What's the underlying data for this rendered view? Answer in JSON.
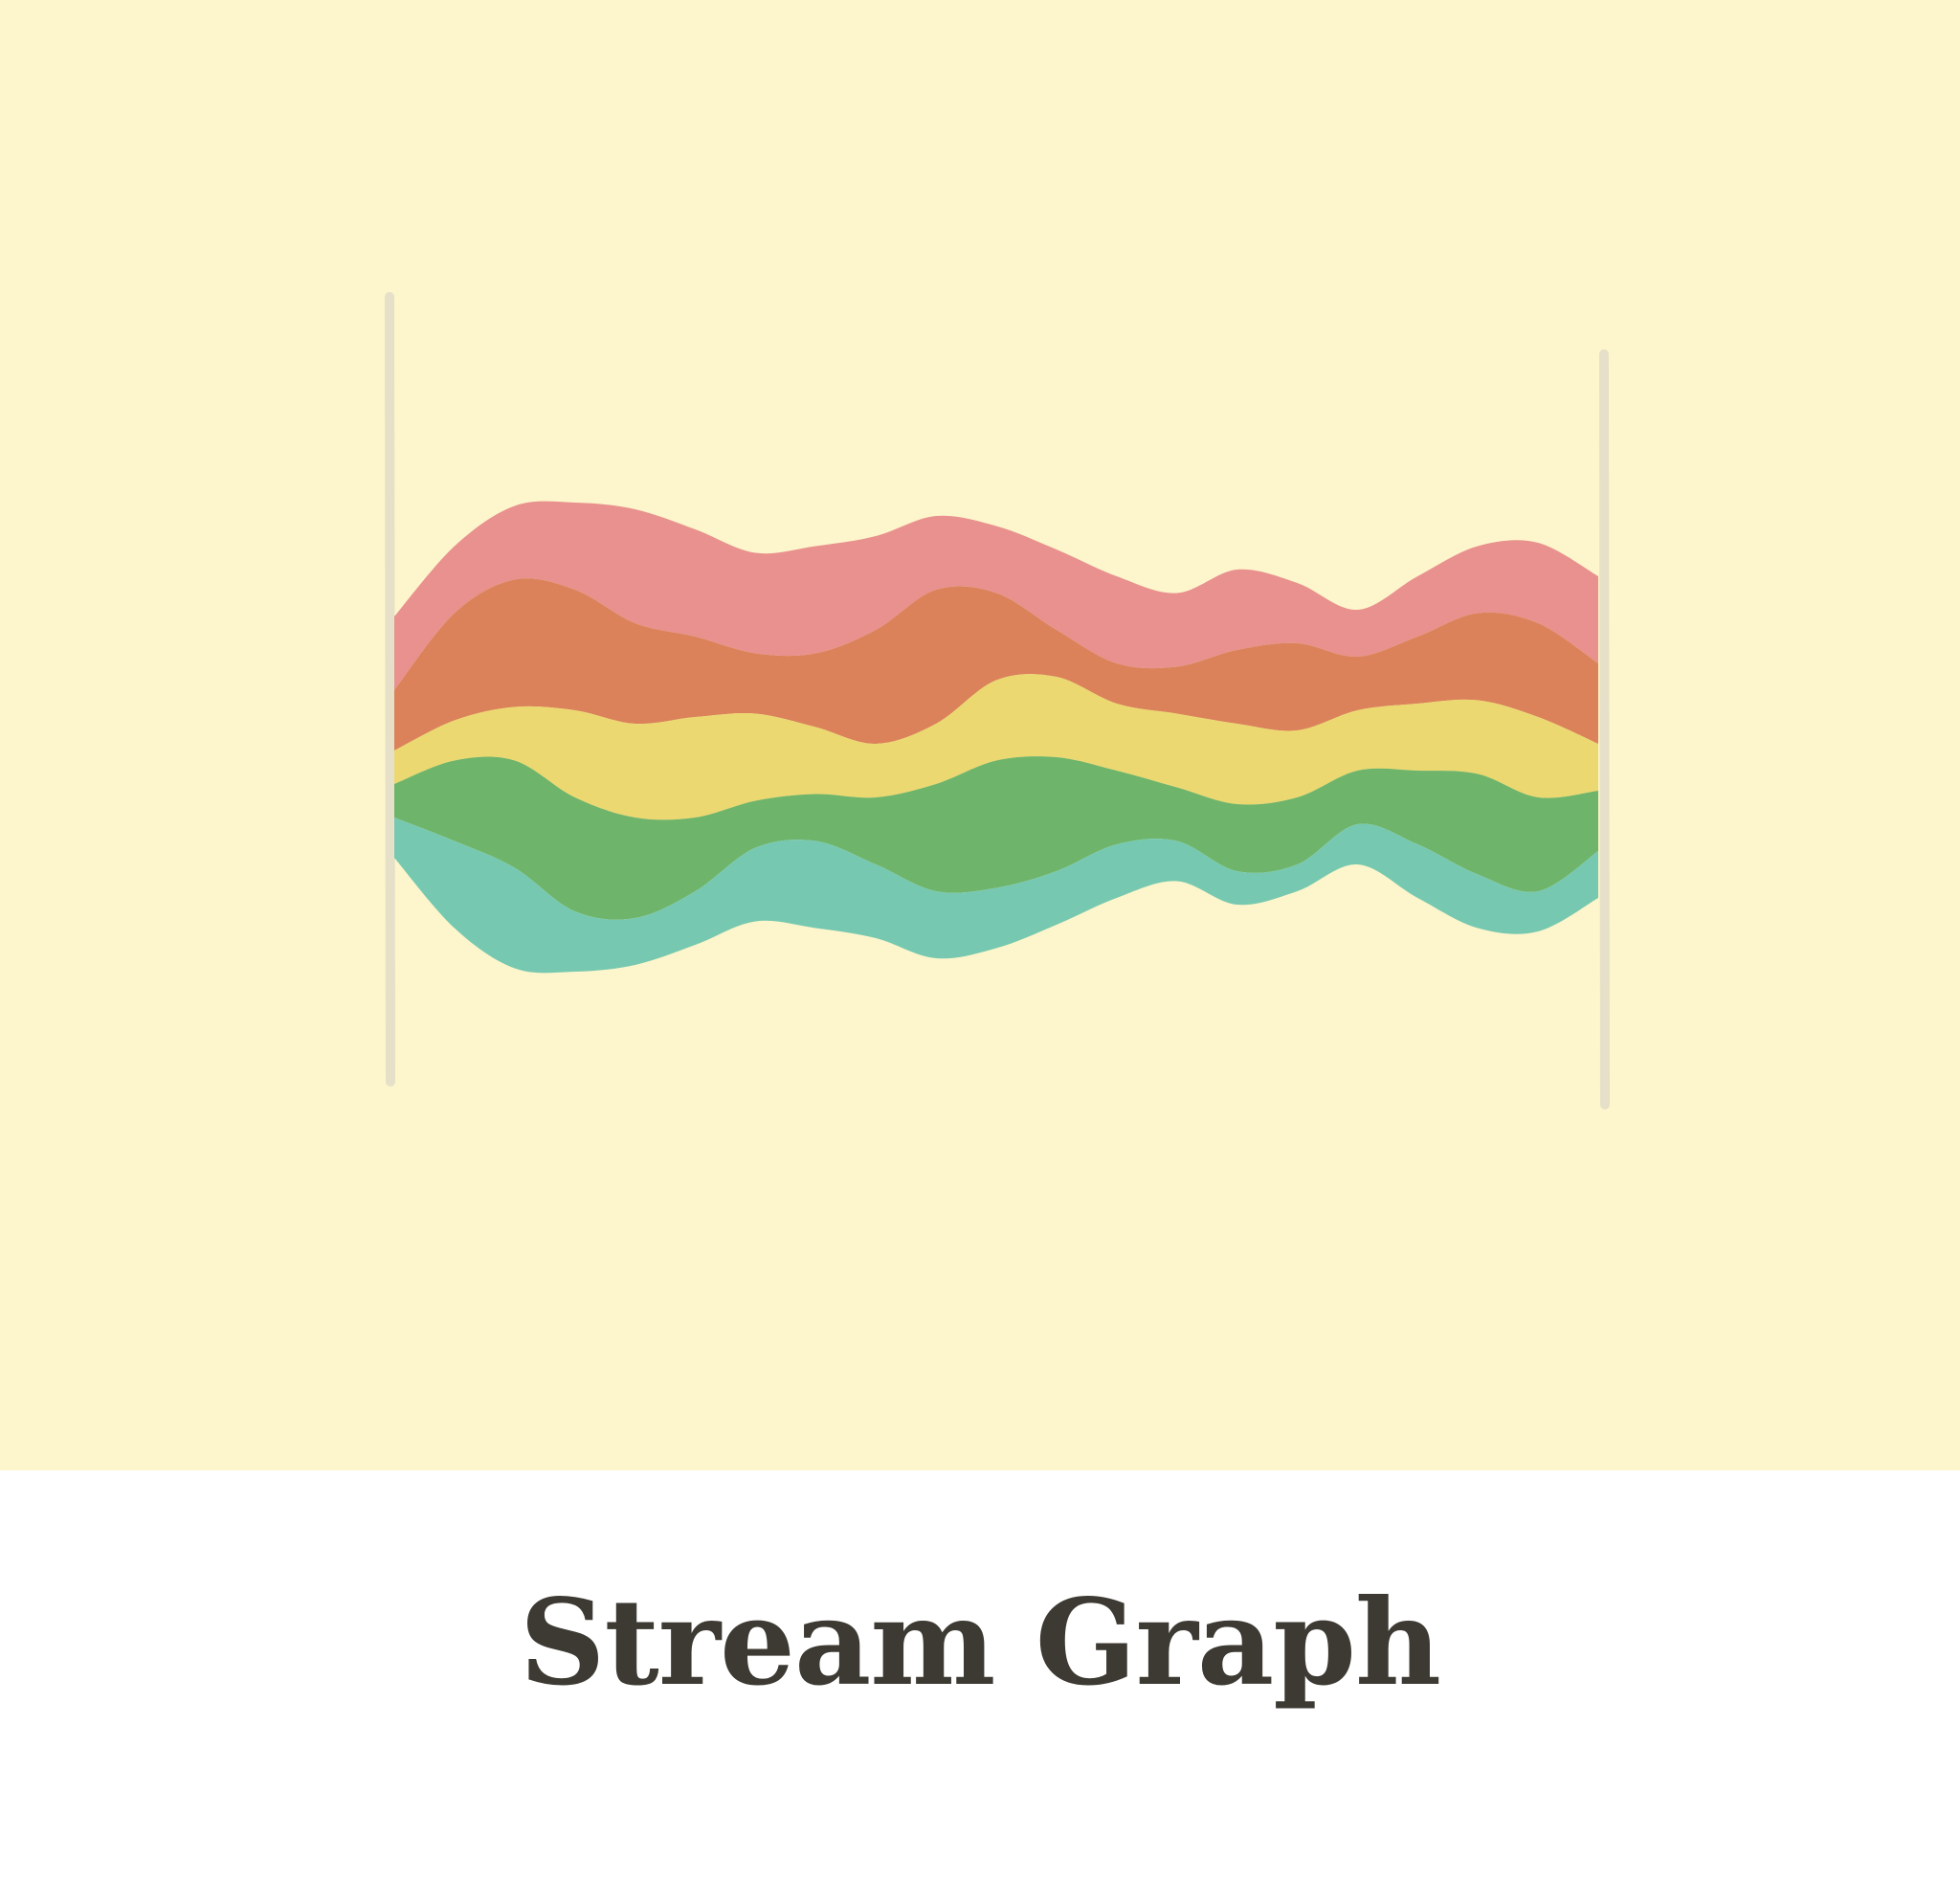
{
  "title": "Stream Graph",
  "colors": {
    "background": "#fdf5cb",
    "caption_background": "#ffffff",
    "caption_text": "#3d3a33",
    "axis": "#e6e0c8"
  },
  "chart_data": {
    "type": "area",
    "layout": "streamgraph",
    "baseline": "wiggle",
    "x": [
      0,
      1,
      2,
      3,
      4,
      5,
      6,
      7,
      8,
      9,
      10,
      11,
      12,
      13,
      14,
      15,
      16,
      17,
      18,
      19,
      20
    ],
    "ylim": [
      -1,
      1
    ],
    "series": [
      {
        "color": "#76c9b0",
        "values": [
          6,
          13,
          15,
          9,
          7,
          8,
          11,
          13,
          11,
          10,
          9,
          8,
          8,
          6,
          5,
          4,
          6,
          8,
          8,
          6,
          7
        ]
      },
      {
        "color": "#6fb46b",
        "values": [
          5,
          12,
          16,
          17,
          15,
          11,
          7,
          7,
          10,
          16,
          19,
          17,
          11,
          8,
          10,
          10,
          8,
          11,
          15,
          14,
          9
        ]
      },
      {
        "color": "#ecd870",
        "values": [
          5,
          6,
          8,
          13,
          14,
          15,
          13,
          10,
          8,
          9,
          12,
          12,
          10,
          11,
          12,
          10,
          9,
          10,
          11,
          12,
          7
        ]
      },
      {
        "color": "#db825b",
        "values": [
          9,
          16,
          19,
          18,
          15,
          12,
          9,
          11,
          17,
          20,
          13,
          7,
          6,
          7,
          11,
          13,
          8,
          10,
          13,
          14,
          12
        ]
      },
      {
        "color": "#e8918e",
        "values": [
          11,
          10,
          11,
          13,
          17,
          16,
          15,
          16,
          14,
          11,
          10,
          12,
          13,
          11,
          12,
          9,
          7,
          9,
          10,
          12,
          13
        ]
      }
    ]
  }
}
